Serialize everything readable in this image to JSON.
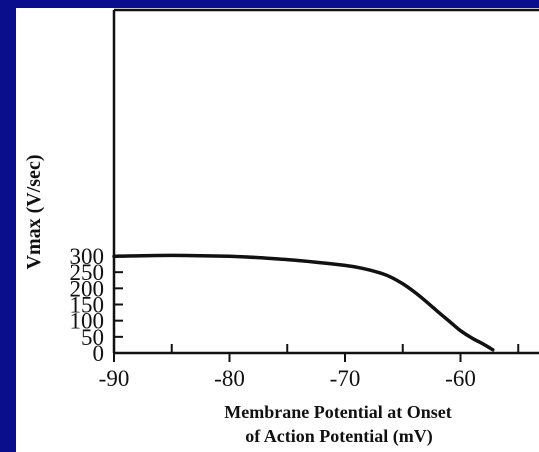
{
  "colors": {
    "background": "#0b0e8c",
    "panel": "#ffffff",
    "ink": "#111111"
  },
  "chart_data": {
    "type": "line",
    "title": "",
    "xlabel_line1": "Membrane Potential at Onset",
    "xlabel_line2": "of Action Potential (mV)",
    "ylabel": "Vmax (V/sec)",
    "xlim": [
      -90,
      -55
    ],
    "ylim": [
      0,
      300
    ],
    "xticks_major": [
      -90,
      -80,
      -70,
      -60
    ],
    "xticks_minor": [
      -85,
      -75,
      -65,
      -55
    ],
    "xtick_labels": [
      "-90",
      "-80",
      "-70",
      "-60"
    ],
    "yticks": [
      0,
      50,
      100,
      150,
      200,
      250,
      300
    ],
    "ytick_labels": [
      "0",
      "50",
      "100",
      "150",
      "200",
      "250",
      "300"
    ],
    "grid": false,
    "legend": "none",
    "series": [
      {
        "x": [
          -90,
          -87.5,
          -85,
          -82.5,
          -80,
          -77.5,
          -75,
          -72.5,
          -70,
          -68.5,
          -67,
          -66,
          -65,
          -64,
          -63,
          -62,
          -61,
          -60,
          -59,
          -58,
          -57.2
        ],
        "values": [
          299,
          301,
          302,
          301,
          299,
          295,
          289,
          281,
          271,
          262,
          248,
          234,
          214,
          189,
          160,
          129,
          99,
          69,
          46,
          27,
          10
        ]
      }
    ]
  }
}
